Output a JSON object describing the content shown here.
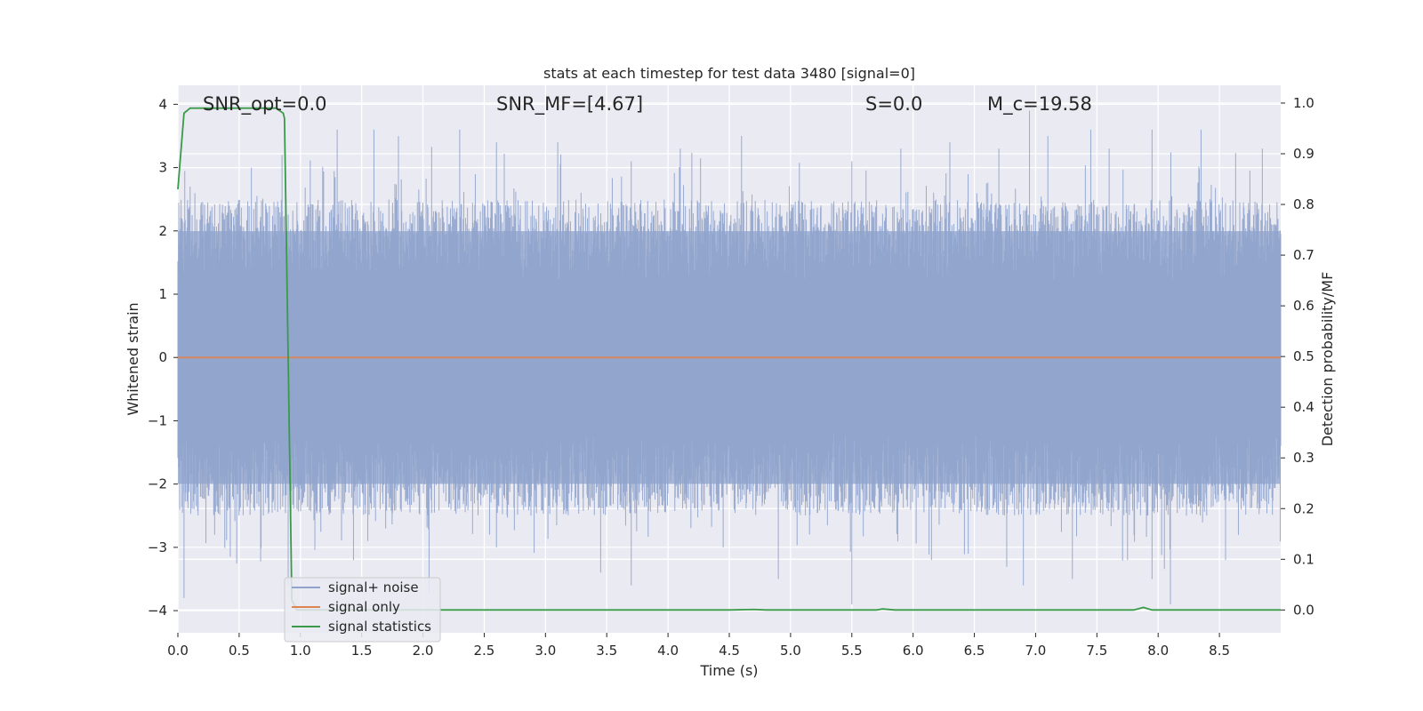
{
  "chart_data": {
    "type": "line",
    "title": "stats at each timestep for test data 3480 [signal=0]",
    "xlabel": "Time (s)",
    "ylabel_left": "Whitened strain",
    "ylabel_right": "Detection probability/MF",
    "xlim": [
      0.0,
      9.0
    ],
    "ylim_left": [
      -4.35,
      4.3
    ],
    "ylim_right": [
      -0.045,
      1.035
    ],
    "grid": true,
    "x_ticks": [
      "0.0",
      "0.5",
      "1.0",
      "1.5",
      "2.0",
      "2.5",
      "3.0",
      "3.5",
      "4.0",
      "4.5",
      "5.0",
      "5.5",
      "6.0",
      "6.5",
      "7.0",
      "7.5",
      "8.0",
      "8.5"
    ],
    "y_left_ticks": [
      "4",
      "3",
      "2",
      "1",
      "0",
      "−1",
      "−2",
      "−3",
      "−4"
    ],
    "y_right_ticks": [
      "1.0",
      "0.9",
      "0.8",
      "0.7",
      "0.6",
      "0.5",
      "0.4",
      "0.3",
      "0.2",
      "0.1",
      "0.0"
    ],
    "annotations": [
      {
        "label": "SNR_opt=0.0"
      },
      {
        "label": "SNR_MF=[4.67]"
      },
      {
        "label": "S=0.0"
      },
      {
        "label": "M_c=19.58"
      }
    ],
    "legend_location": "lower-left",
    "series": [
      {
        "name": "signal+ noise",
        "axis": "left",
        "color": "#8fa3cc",
        "description": "whitened noise, roughly uniform amplitude about ±2 with peaks near ±3.9",
        "envelope_upper": 2.0,
        "envelope_lower": -2.0,
        "peaks_upper": [
          [
            0.1,
            2.7
          ],
          [
            0.6,
            3.0
          ],
          [
            0.85,
            3.2
          ],
          [
            1.3,
            3.6
          ],
          [
            1.6,
            3.6
          ],
          [
            1.8,
            3.5
          ],
          [
            2.3,
            3.6
          ],
          [
            2.6,
            3.4
          ],
          [
            3.1,
            3.4
          ],
          [
            3.7,
            3.1
          ],
          [
            4.1,
            3.3
          ],
          [
            4.6,
            3.5
          ],
          [
            5.5,
            3.1
          ],
          [
            5.9,
            3.3
          ],
          [
            6.3,
            3.4
          ],
          [
            6.7,
            3.3
          ],
          [
            6.95,
            3.9
          ],
          [
            7.1,
            3.5
          ],
          [
            7.45,
            3.6
          ],
          [
            7.6,
            3.3
          ],
          [
            7.95,
            3.6
          ],
          [
            8.35,
            3.6
          ],
          [
            8.85,
            3.3
          ]
        ],
        "peaks_lower": [
          [
            0.05,
            -3.8
          ],
          [
            0.3,
            -2.8
          ],
          [
            0.9,
            -3.6
          ],
          [
            1.55,
            -2.9
          ],
          [
            2.05,
            -3.7
          ],
          [
            2.6,
            -3.0
          ],
          [
            3.45,
            -3.4
          ],
          [
            3.7,
            -3.6
          ],
          [
            4.45,
            -3.0
          ],
          [
            4.9,
            -3.5
          ],
          [
            5.5,
            -3.9
          ],
          [
            6.15,
            -3.2
          ],
          [
            6.45,
            -3.1
          ],
          [
            6.9,
            -3.6
          ],
          [
            7.3,
            -3.5
          ],
          [
            7.75,
            -3.2
          ],
          [
            7.95,
            -3.5
          ],
          [
            8.1,
            -3.9
          ],
          [
            8.55,
            -3.2
          ]
        ]
      },
      {
        "name": "signal only",
        "axis": "left",
        "color": "#dd8452",
        "x": [
          0.0,
          9.0
        ],
        "y": [
          0.0,
          0.0
        ]
      },
      {
        "name": "signal statistics",
        "axis": "right",
        "color": "#3a9a4a",
        "x": [
          0.0,
          0.05,
          0.1,
          0.2,
          0.4,
          0.6,
          0.8,
          0.86,
          0.87,
          0.9,
          0.93,
          0.97,
          1.5,
          2.0,
          3.0,
          4.0,
          4.5,
          4.7,
          4.8,
          5.5,
          5.7,
          5.75,
          5.85,
          6.0,
          7.0,
          7.8,
          7.88,
          7.95,
          8.5,
          9.0
        ],
        "y": [
          0.83,
          0.98,
          0.99,
          0.99,
          0.99,
          0.99,
          0.99,
          0.98,
          0.97,
          0.5,
          0.02,
          0.0,
          0.0,
          0.0,
          0.0,
          0.0,
          0.0,
          0.001,
          0.0,
          0.0,
          0.0,
          0.002,
          0.0,
          0.0,
          0.0,
          0.0,
          0.005,
          0.0,
          0.0,
          0.0
        ]
      }
    ],
    "colors": {
      "plot_background": "#eaeaf2",
      "grid": "#ffffff",
      "text": "#262626"
    }
  }
}
